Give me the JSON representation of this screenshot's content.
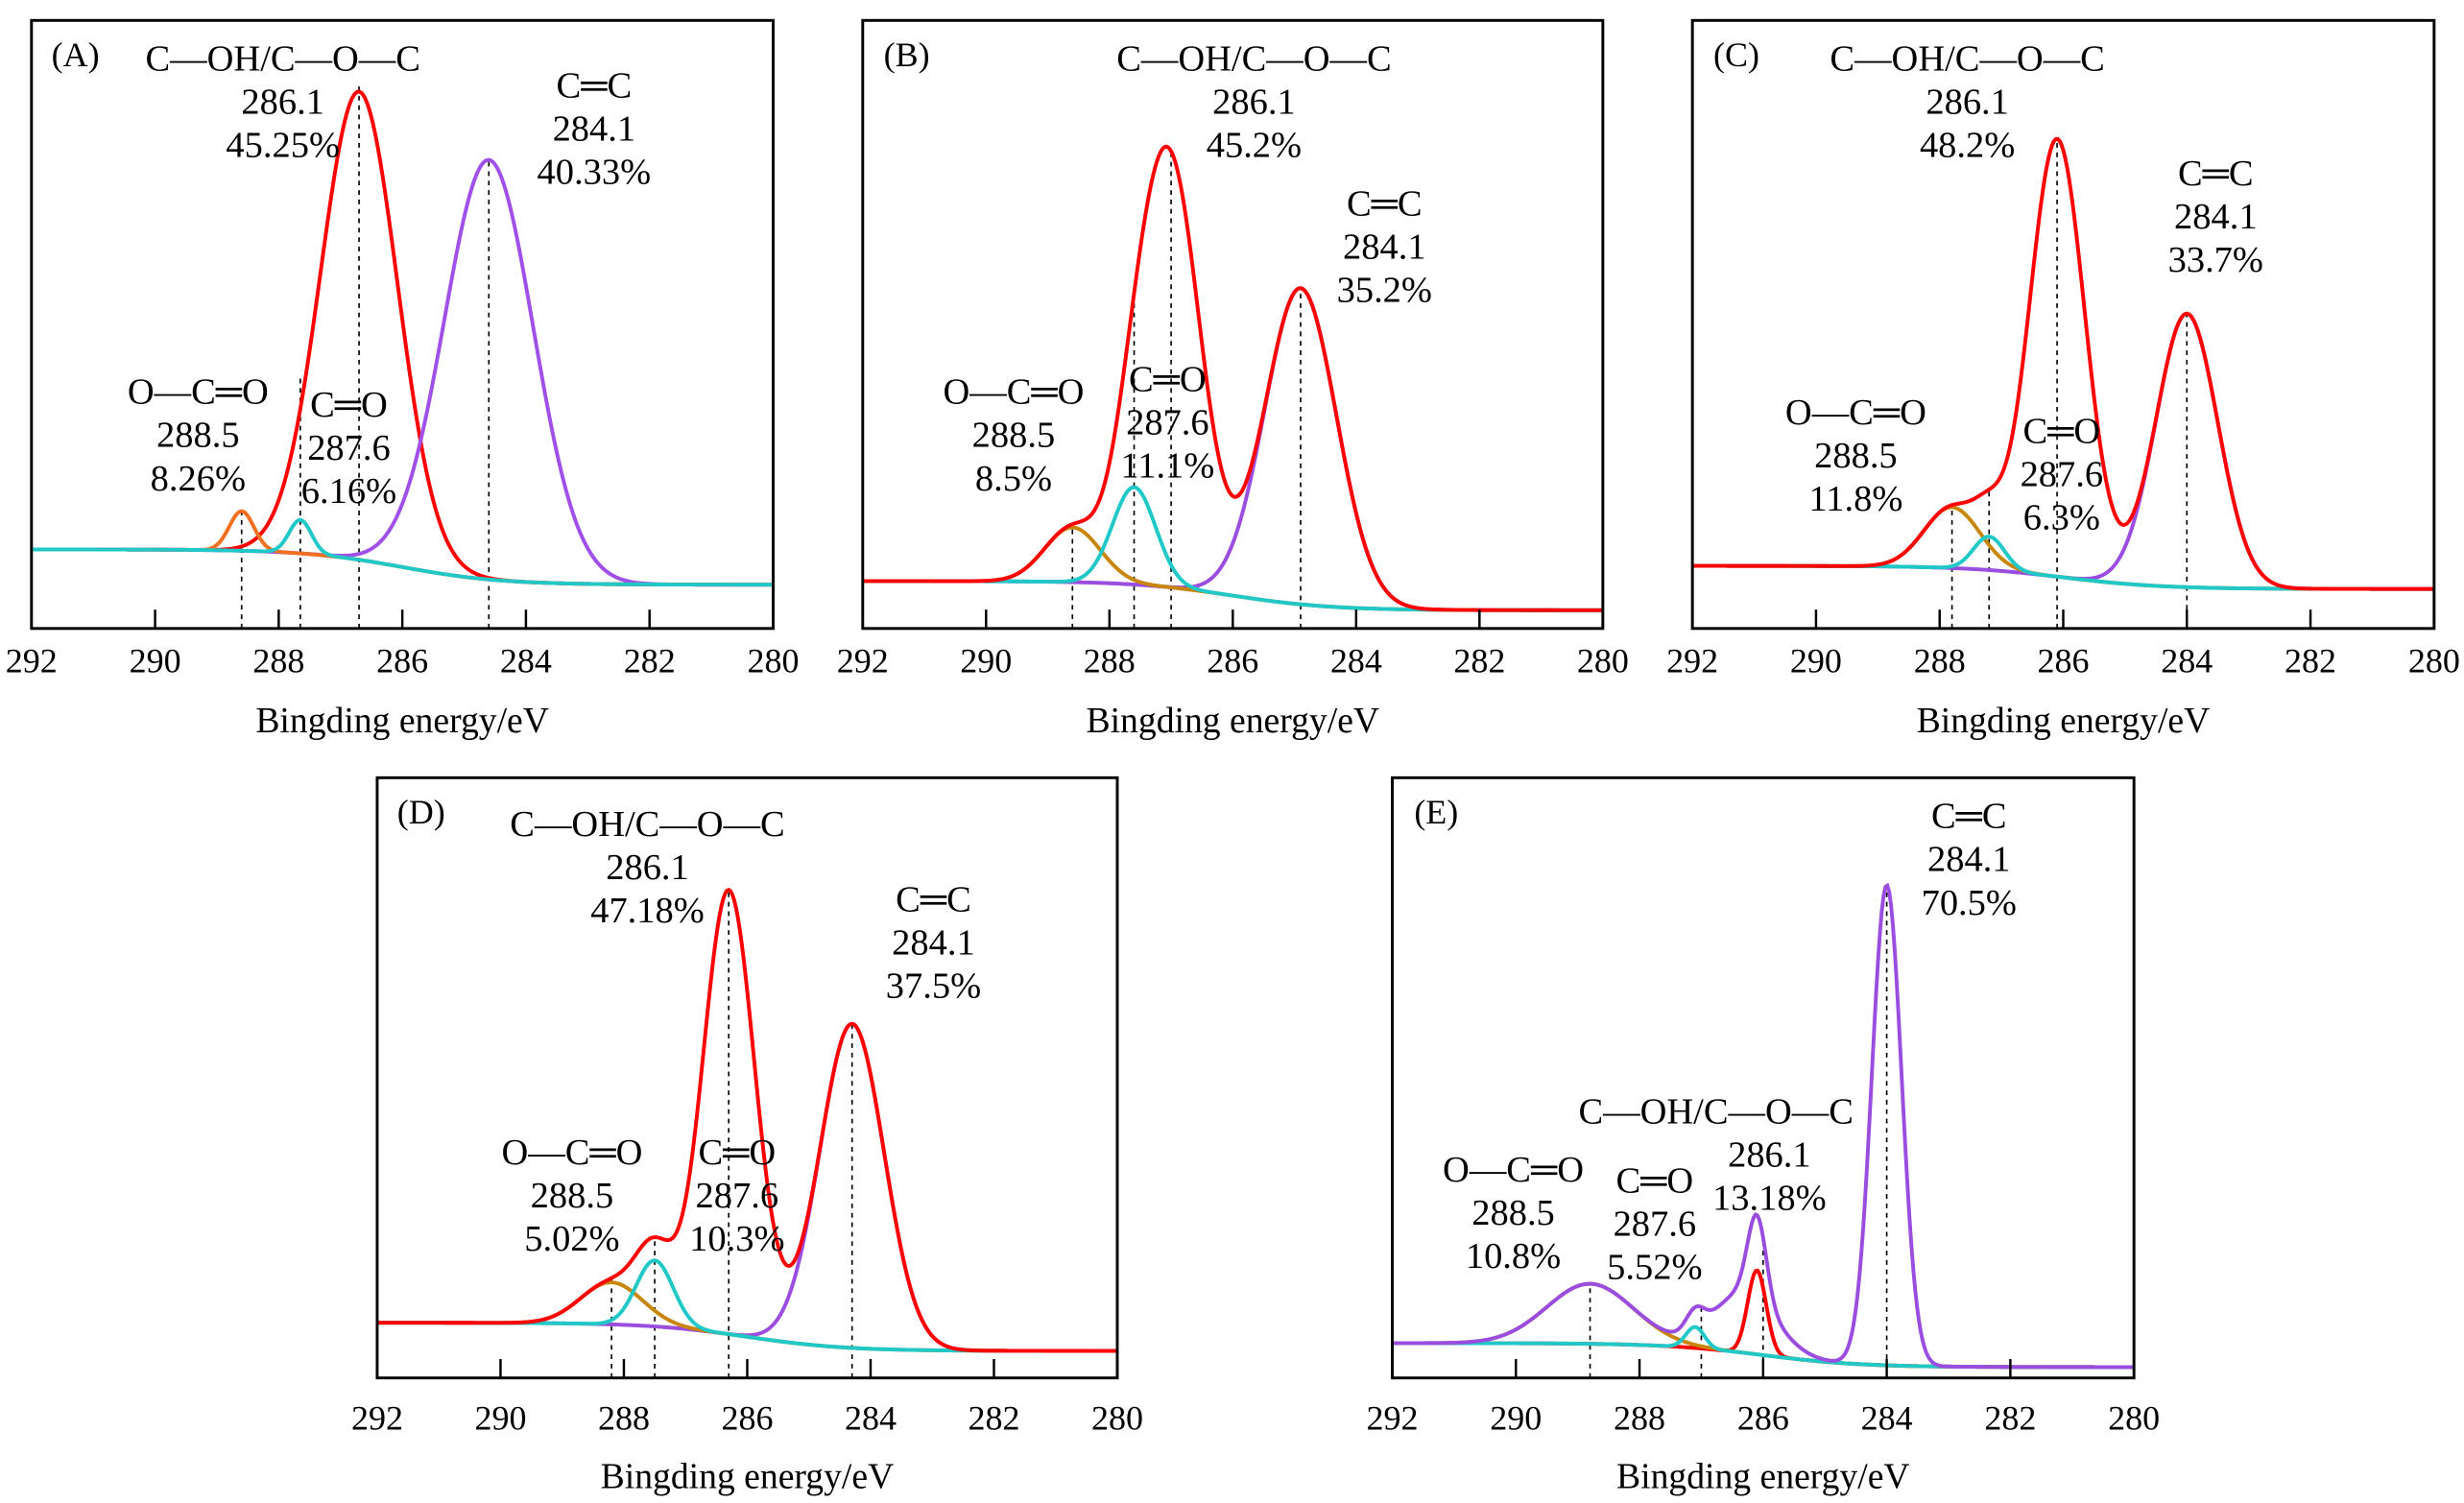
{
  "chart_data": [
    {
      "type": "line",
      "panel_label": "(A)",
      "xlabel": "Bingding energy/eV",
      "ylabel": "",
      "xlim": [
        292,
        280
      ],
      "x_reversed": true,
      "ticks": [
        "292",
        "290",
        "288",
        "286",
        "284",
        "282",
        "280"
      ],
      "grid": false,
      "y_axis_ticks": false,
      "annotations": [
        {
          "lines": [
            "C—OH/C—O—C",
            "286.1",
            "45.25%"
          ]
        },
        {
          "lines": [
            "C═C",
            "284.1",
            "40.33%"
          ]
        },
        {
          "lines": [
            "O—C═O",
            "288.5",
            "8.26%"
          ]
        },
        {
          "lines": [
            "C═O",
            "287.6",
            "6.16%"
          ]
        }
      ],
      "background": {
        "left": 0.13,
        "right": 0.072,
        "color": "#b678f0"
      },
      "envelope": {
        "visible": false,
        "color": "#ff0000"
      },
      "components": [
        {
          "center": 286.7,
          "height": 0.77,
          "sigma": 0.62,
          "color": "#ff0000",
          "visible": true
        },
        {
          "center": 284.6,
          "height": 0.69,
          "sigma": 0.72,
          "color": "#a050e8",
          "visible": true
        },
        {
          "center": 288.6,
          "height": 0.065,
          "sigma": 0.2,
          "color": "#f07020",
          "visible": true
        },
        {
          "center": 287.65,
          "height": 0.055,
          "sigma": 0.18,
          "color": "#20c8c8",
          "visible": true
        }
      ],
      "dashed_x": [
        288.6,
        287.65,
        286.7,
        284.6
      ]
    },
    {
      "type": "line",
      "panel_label": "(B)",
      "xlabel": "Bingding energy/eV",
      "ylabel": "",
      "xlim": [
        292,
        280
      ],
      "x_reversed": true,
      "ticks": [
        "292",
        "290",
        "288",
        "286",
        "284",
        "282",
        "280"
      ],
      "grid": false,
      "y_axis_ticks": false,
      "annotations": [
        {
          "lines": [
            "C—OH/C—O—C",
            "286.1",
            "45.2%"
          ]
        },
        {
          "lines": [
            "C═C",
            "284.1",
            "35.2%"
          ]
        },
        {
          "lines": [
            "O—C═O",
            "288.5",
            "8.5%"
          ]
        },
        {
          "lines": [
            "C═O",
            "287.6",
            "11.1%"
          ]
        }
      ],
      "background": {
        "left": 0.078,
        "right": 0.03,
        "color": "#9b4de0"
      },
      "envelope": {
        "visible": true,
        "color": "#ff0000"
      },
      "components": [
        {
          "center": 287.0,
          "height": 0.68,
          "sigma": 0.48,
          "color": "#ff0000",
          "visible": false
        },
        {
          "center": 284.9,
          "height": 0.52,
          "sigma": 0.58,
          "color": "#9b4de0",
          "visible": true
        },
        {
          "center": 288.6,
          "height": 0.09,
          "sigma": 0.45,
          "color": "#c8860a",
          "visible": true
        },
        {
          "center": 287.6,
          "height": 0.16,
          "sigma": 0.35,
          "color": "#20c8c8",
          "visible": true
        }
      ],
      "dashed_x": [
        288.6,
        287.6,
        287.0,
        284.9
      ]
    },
    {
      "type": "line",
      "panel_label": "(C)",
      "xlabel": "Bingding energy/eV",
      "ylabel": "",
      "xlim": [
        292,
        280
      ],
      "x_reversed": true,
      "ticks": [
        "292",
        "290",
        "288",
        "286",
        "284",
        "282",
        "280"
      ],
      "grid": false,
      "y_axis_ticks": false,
      "annotations": [
        {
          "lines": [
            "C—OH/C—O—C",
            "286.1",
            "48.2%"
          ]
        },
        {
          "lines": [
            "C═C",
            "284.1",
            "33.7%"
          ]
        },
        {
          "lines": [
            "O—C═O",
            "288.5",
            "11.8%"
          ]
        },
        {
          "lines": [
            "C═O",
            "287.6",
            "6.3%"
          ]
        }
      ],
      "background": {
        "left": 0.103,
        "right": 0.065,
        "color": "#20c8c8"
      },
      "envelope": {
        "visible": true,
        "color": "#ff0000"
      },
      "components": [
        {
          "center": 286.1,
          "height": 0.72,
          "sigma": 0.45,
          "color": "#ff0000",
          "visible": false
        },
        {
          "center": 284.0,
          "height": 0.45,
          "sigma": 0.5,
          "color": "#9b4de0",
          "visible": true
        },
        {
          "center": 287.8,
          "height": 0.1,
          "sigma": 0.45,
          "color": "#c8860a",
          "visible": true
        },
        {
          "center": 287.2,
          "height": 0.055,
          "sigma": 0.25,
          "color": "#20c8c8",
          "visible": true
        }
      ],
      "dashed_x": [
        287.8,
        287.2,
        286.1,
        284.0
      ]
    },
    {
      "type": "line",
      "panel_label": "(D)",
      "xlabel": "Bingding energy/eV",
      "ylabel": "",
      "xlim": [
        292,
        280
      ],
      "x_reversed": true,
      "ticks": [
        "292",
        "290",
        "288",
        "286",
        "284",
        "282",
        "280"
      ],
      "grid": false,
      "y_axis_ticks": false,
      "annotations": [
        {
          "lines": [
            "C—OH/C—O—C",
            "286.1",
            "47.18%"
          ]
        },
        {
          "lines": [
            "C═C",
            "284.1",
            "37.5%"
          ]
        },
        {
          "lines": [
            "O—C═O",
            "288.5",
            "5.02%"
          ]
        },
        {
          "lines": [
            "C═O",
            "287.6",
            "10.3%"
          ]
        }
      ],
      "background": {
        "left": 0.092,
        "right": 0.045,
        "color": "#c8860a"
      },
      "envelope": {
        "visible": true,
        "color": "#ff0000"
      },
      "components": [
        {
          "center": 286.3,
          "height": 0.74,
          "sigma": 0.42,
          "color": "#ff0000",
          "visible": false
        },
        {
          "center": 284.3,
          "height": 0.54,
          "sigma": 0.52,
          "color": "#9b4de0",
          "visible": true
        },
        {
          "center": 288.2,
          "height": 0.07,
          "sigma": 0.5,
          "color": "#c8860a",
          "visible": true
        },
        {
          "center": 287.5,
          "height": 0.11,
          "sigma": 0.3,
          "color": "#20c8c8",
          "visible": true
        }
      ],
      "dashed_x": [
        288.2,
        287.5,
        286.3,
        284.3
      ]
    },
    {
      "type": "line",
      "panel_label": "(E)",
      "xlabel": "Bingding energy/eV",
      "ylabel": "",
      "xlim": [
        292,
        280
      ],
      "x_reversed": true,
      "ticks": [
        "292",
        "290",
        "288",
        "286",
        "284",
        "282",
        "280"
      ],
      "grid": false,
      "y_axis_ticks": false,
      "annotations": [
        {
          "lines": [
            "C═C",
            "284.1",
            "70.5%"
          ]
        },
        {
          "lines": [
            "C—OH/C—O—C",
            "286.1",
            "13.18%"
          ]
        },
        {
          "lines": [
            "O—C═O",
            "288.5",
            "10.8%"
          ]
        },
        {
          "lines": [
            "C═O",
            "287.6",
            "5.52%"
          ]
        }
      ],
      "background": {
        "left": 0.058,
        "right": 0.018,
        "color": "#20c8c8"
      },
      "envelope": {
        "visible": true,
        "color": "#9b4de0"
      },
      "components": [
        {
          "center": 284.0,
          "height": 0.8,
          "sigma": 0.24,
          "color": "#9b4de0",
          "visible": false
        },
        {
          "center": 286.3,
          "height": 0.1,
          "sigma": 0.5,
          "color": "#9b4de0",
          "visible": false
        },
        {
          "center": 286.1,
          "height": 0.14,
          "sigma": 0.15,
          "color": "#ff0000",
          "visible": true
        },
        {
          "center": 288.8,
          "height": 0.1,
          "sigma": 0.7,
          "color": "#c8860a",
          "visible": true
        },
        {
          "center": 287.1,
          "height": 0.035,
          "sigma": 0.15,
          "color": "#20c8c8",
          "visible": true
        }
      ],
      "dashed_x": [
        288.8,
        287.0,
        286.0,
        284.0
      ]
    }
  ]
}
